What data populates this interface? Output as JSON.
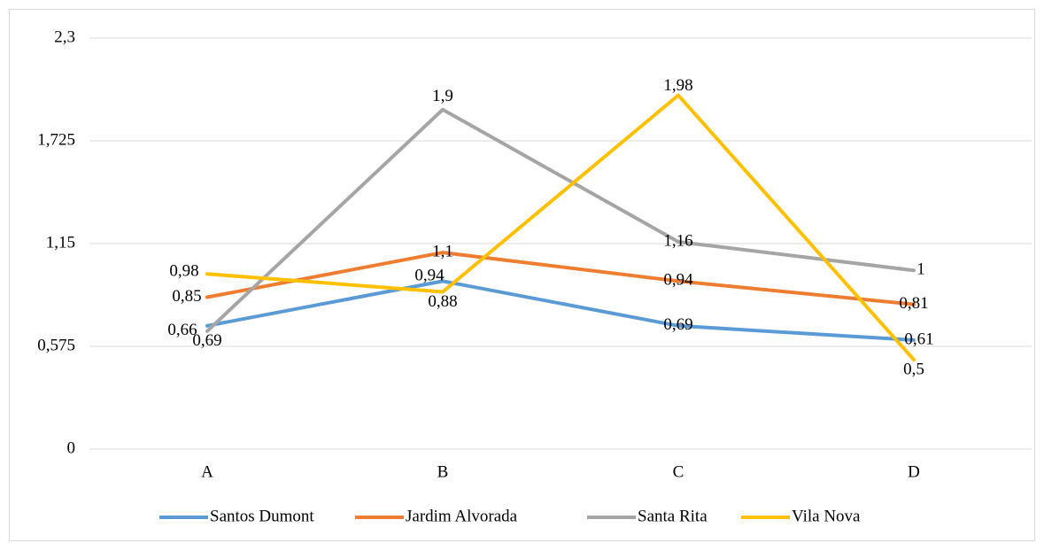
{
  "chart_data": {
    "type": "line",
    "categories": [
      "A",
      "B",
      "C",
      "D"
    ],
    "ylim": [
      0,
      2.3
    ],
    "yticks": [
      0,
      {
        "value": 0.575,
        "label": "0,575"
      },
      {
        "value": 1.15,
        "label": "1,15"
      },
      {
        "value": 1.725,
        "label": "1,725"
      },
      {
        "value": 2.3,
        "label": "2,3"
      }
    ],
    "grid": true,
    "legend": "bottom",
    "series": [
      {
        "name": "Santos Dumont",
        "color": "#5b9bd5",
        "values": [
          0.69,
          0.94,
          0.69,
          0.61
        ],
        "value_labels": [
          "0,69",
          "0,94",
          "0,69",
          "0,61"
        ]
      },
      {
        "name": "Jardim Alvorada",
        "color": "#ed7d31",
        "values": [
          0.85,
          1.1,
          0.94,
          0.81
        ],
        "value_labels": [
          "0,85",
          "1,1",
          "0,94",
          "0,81"
        ]
      },
      {
        "name": "Santa Rita",
        "color": "#a5a5a5",
        "values": [
          0.66,
          1.9,
          1.16,
          1
        ],
        "value_labels": [
          "0,66",
          "1,9",
          "1,16",
          "1"
        ]
      },
      {
        "name": "Vila Nova",
        "color": "#ffc000",
        "values": [
          0.98,
          0.88,
          1.98,
          0.5
        ],
        "value_labels": [
          "0,98",
          "0,88",
          "1,98",
          "0,5"
        ]
      }
    ]
  }
}
